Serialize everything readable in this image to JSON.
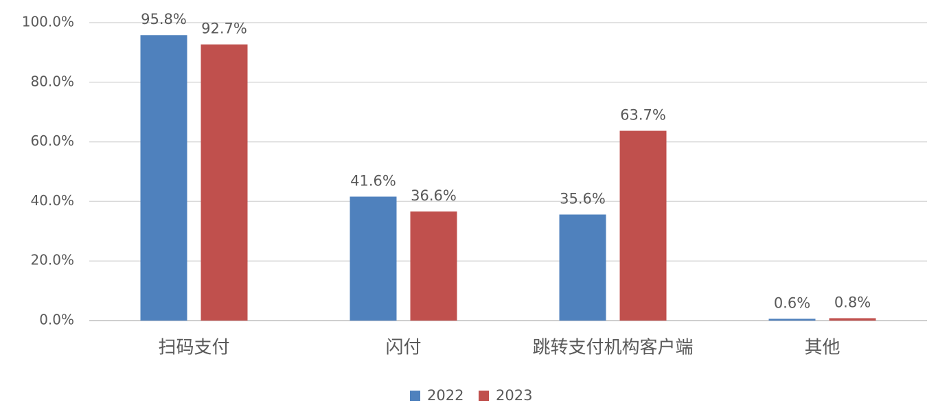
{
  "chart_data": {
    "type": "bar",
    "categories": [
      "扫码支付",
      "闪付",
      "跳转支付机构客户端",
      "其他"
    ],
    "series": [
      {
        "name": "2022",
        "color": "#4f81bd",
        "values": [
          95.8,
          41.6,
          35.6,
          0.6
        ],
        "value_labels": [
          "95.8%",
          "41.6%",
          "35.6%",
          "0.6%"
        ]
      },
      {
        "name": "2023",
        "color": "#c0504d",
        "values": [
          92.7,
          36.6,
          63.7,
          0.8
        ],
        "value_labels": [
          "92.7%",
          "36.6%",
          "63.7%",
          "0.8%"
        ]
      }
    ],
    "ylim": [
      0,
      100
    ],
    "yticks": [
      {
        "value": 0,
        "label": "0.0%"
      },
      {
        "value": 20,
        "label": "20.0%"
      },
      {
        "value": 40,
        "label": "40.0%"
      },
      {
        "value": 60,
        "label": "60.0%"
      },
      {
        "value": 80,
        "label": "80.0%"
      },
      {
        "value": 100,
        "label": "100.0%"
      }
    ],
    "grid": true,
    "legend": "bottom"
  }
}
